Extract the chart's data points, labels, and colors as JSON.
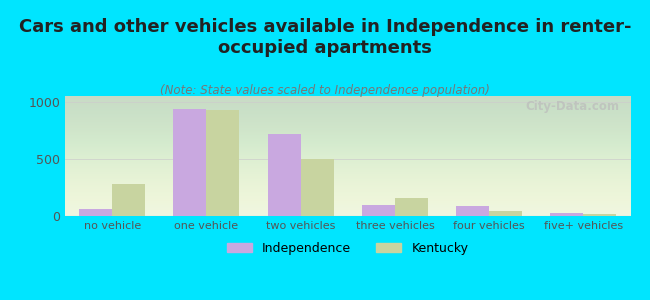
{
  "title": "Cars and other vehicles available in Independence in renter-\noccupied apartments",
  "subtitle": "(Note: State values scaled to Independence population)",
  "categories": [
    "no vehicle",
    "one vehicle",
    "two vehicles",
    "three vehicles",
    "four vehicles",
    "five+ vehicles"
  ],
  "independence_values": [
    60,
    940,
    720,
    100,
    90,
    25
  ],
  "kentucky_values": [
    280,
    930,
    500,
    155,
    45,
    15
  ],
  "independence_color": "#c9a8e0",
  "kentucky_color": "#c8d4a0",
  "background_outer": "#00e5ff",
  "ylim": [
    0,
    1050
  ],
  "yticks": [
    0,
    500,
    1000
  ],
  "bar_width": 0.35,
  "title_fontsize": 13,
  "subtitle_fontsize": 8.5,
  "legend_labels": [
    "Independence",
    "Kentucky"
  ],
  "watermark": "City-Data.com"
}
